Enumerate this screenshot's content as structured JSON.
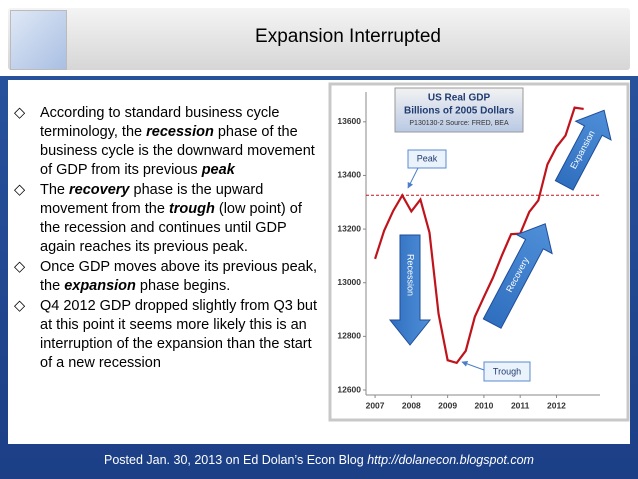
{
  "header": {
    "title": "Expansion Interrupted"
  },
  "bullets": [
    {
      "runs": [
        {
          "text": "According to standard business cycle terminology, the ",
          "emphasis": false
        },
        {
          "text": "recession",
          "emphasis": true
        },
        {
          "text": " phase of the business cycle is the downward movement of GDP from its previous ",
          "emphasis": false
        },
        {
          "text": "peak",
          "emphasis": true
        }
      ]
    },
    {
      "runs": [
        {
          "text": "The ",
          "emphasis": false
        },
        {
          "text": "recovery",
          "emphasis": true
        },
        {
          "text": " phase is the upward movement from the ",
          "emphasis": false
        },
        {
          "text": "trough",
          "emphasis": true
        },
        {
          "text": " (low point) of the recession and continues until GDP again reaches its previous peak.",
          "emphasis": false
        }
      ]
    },
    {
      "runs": [
        {
          "text": "Once GDP moves above its previous peak, the ",
          "emphasis": false
        },
        {
          "text": "expansion",
          "emphasis": true
        },
        {
          "text": " phase begins.",
          "emphasis": false
        }
      ]
    },
    {
      "runs": [
        {
          "text": "Q4 2012 GDP dropped slightly from Q3 but at this point it seems more likely this is an interruption of the expansion than the start of a new recession",
          "emphasis": false
        }
      ]
    }
  ],
  "footer": {
    "text": "Posted Jan. 30, 2013 on Ed Dolan’s Econ Blog",
    "url": "http://dolanecon.blogspot.com"
  },
  "chart_data": {
    "type": "line",
    "title": "US Real GDP",
    "subtitle": "Billions of 2005  Dollars",
    "source": "P130130-2 Source: FRED, BEA",
    "x": [
      2007.0,
      2007.25,
      2007.5,
      2007.75,
      2008.0,
      2008.25,
      2008.5,
      2008.75,
      2009.0,
      2009.25,
      2009.5,
      2009.75,
      2010.0,
      2010.25,
      2010.5,
      2010.75,
      2011.0,
      2011.25,
      2011.5,
      2011.75,
      2012.0,
      2012.25,
      2012.5,
      2012.75
    ],
    "series": [
      {
        "name": "US Real GDP",
        "color": "#c0141c",
        "values": [
          13089,
          13194,
          13268,
          13326,
          13266,
          13310,
          13187,
          12884,
          12711,
          12701,
          12746,
          12873,
          12947,
          13019,
          13103,
          13181,
          13183,
          13264,
          13307,
          13441,
          13506,
          13549,
          13653,
          13648
        ]
      }
    ],
    "reference_y": 13326,
    "reference_color": "#c0141c",
    "xlim": [
      2006.75,
      2013.2
    ],
    "xticks": [
      2007,
      2008,
      2009,
      2010,
      2011,
      2012
    ],
    "ylim": [
      12600,
      13700
    ],
    "yticks": [
      12600,
      12800,
      13000,
      13200,
      13400,
      13600
    ],
    "grid": false,
    "annotations": [
      "Peak",
      "Trough",
      "Recession",
      "Recovery",
      "Expansion"
    ]
  }
}
